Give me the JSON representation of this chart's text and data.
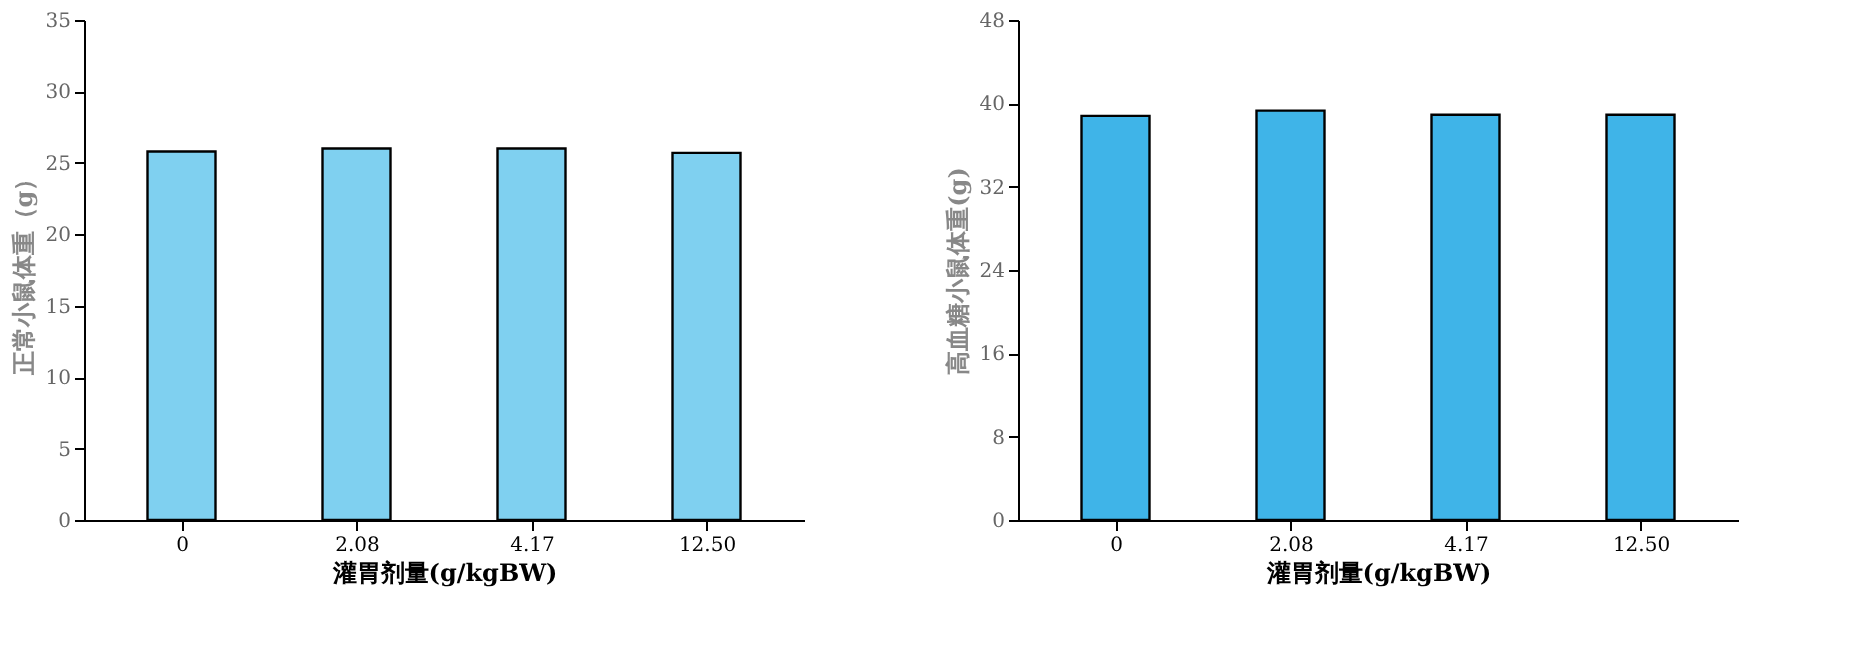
{
  "chart_data": [
    {
      "type": "bar",
      "categories": [
        "0",
        "2.08",
        "4.17",
        "12.50"
      ],
      "values": [
        25.8,
        26.0,
        26.0,
        25.7
      ],
      "color": "#7fd0f0",
      "xlabel": "灌胃剂量(g/kgBW)",
      "ylabel": "正常小鼠体重（g）",
      "ylim": [
        0,
        35
      ],
      "yticks": [
        0,
        5,
        10,
        15,
        20,
        25,
        30,
        35
      ],
      "grid": false
    },
    {
      "type": "bar",
      "categories": [
        "0",
        "2.08",
        "4.17",
        "12.50"
      ],
      "values": [
        38.8,
        39.3,
        38.9,
        38.9
      ],
      "color": "#3fb4e8",
      "xlabel": "灌胃剂量(g/kgBW)",
      "ylabel": "高血糖小鼠体重(g)",
      "ylim": [
        0,
        48
      ],
      "yticks": [
        0,
        8,
        16,
        24,
        32,
        40,
        48
      ],
      "grid": false
    }
  ]
}
